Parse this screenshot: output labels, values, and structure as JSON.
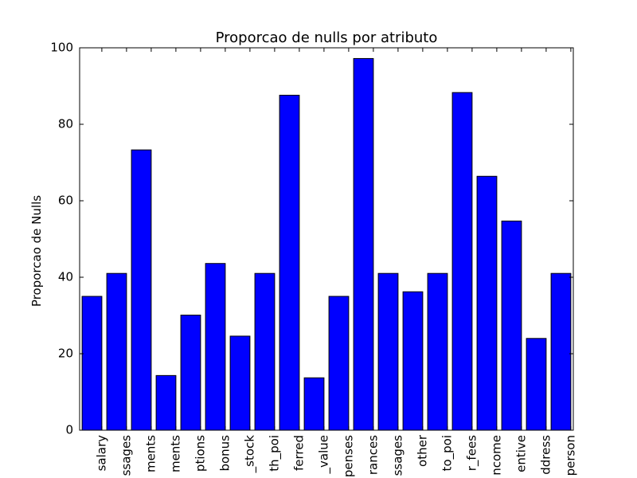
{
  "chart_data": {
    "type": "bar",
    "title": "Proporcao de nulls por atributo",
    "xlabel": "",
    "ylabel": "Proporcao de Nulls",
    "ylim": [
      0,
      100
    ],
    "yticks": [
      "0",
      "20",
      "40",
      "60",
      "80",
      "100"
    ],
    "grid": false,
    "categories": [
      "salary",
      "ssages",
      "ments",
      "ments",
      "ptions",
      "bonus",
      "_stock",
      "th_poi",
      "ferred",
      "_value",
      "penses",
      "rances",
      "ssages",
      "other",
      "to_poi",
      "r_fees",
      "ncome",
      "entive",
      "ddress",
      "person"
    ],
    "values": [
      35,
      41,
      73.3,
      14.3,
      30.1,
      43.6,
      24.6,
      41,
      87.6,
      13.7,
      35,
      97.2,
      41,
      36.2,
      41,
      88.3,
      66.4,
      54.7,
      24,
      41
    ],
    "bar_color": "#0000ff",
    "edge_color": "#000000"
  }
}
